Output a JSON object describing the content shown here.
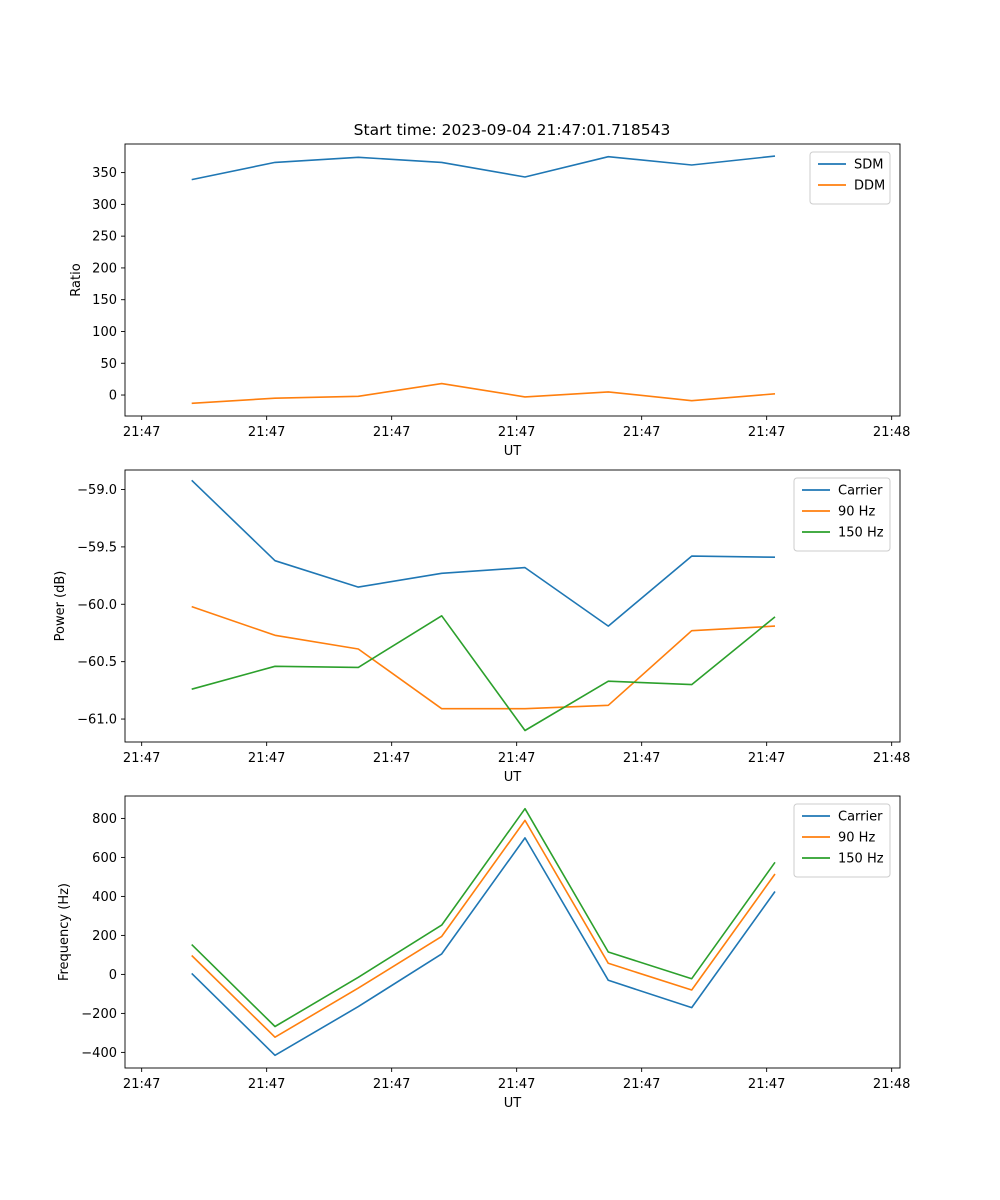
{
  "figure_title": "Start time: 2023-09-04 21:47:01.718543",
  "chart_data": [
    {
      "type": "line",
      "title": "Start time: 2023-09-04 21:47:01.718543",
      "xlabel": "UT",
      "ylabel": "Ratio",
      "x": [
        1,
        2,
        3,
        4,
        5,
        6,
        7,
        8
      ],
      "xlim": [
        0.2,
        9.5
      ],
      "x_ticks": [
        0.4,
        1.9,
        3.4,
        4.9,
        6.4,
        7.9,
        9.4
      ],
      "x_tick_labels": [
        "21:47",
        "21:47",
        "21:47",
        "21:47",
        "21:47",
        "21:47",
        "21:48"
      ],
      "ylim": [
        -33,
        395
      ],
      "y_ticks": [
        0,
        50,
        100,
        150,
        200,
        250,
        300,
        350
      ],
      "y_tick_labels": [
        "0",
        "50",
        "100",
        "150",
        "200",
        "250",
        "300",
        "350"
      ],
      "legend_position": "top-right",
      "series": [
        {
          "name": "SDM",
          "color": "#1f77b4",
          "values": [
            339,
            366,
            374,
            366,
            343,
            375,
            362,
            376
          ]
        },
        {
          "name": "DDM",
          "color": "#ff7f0e",
          "values": [
            -13,
            -5,
            -2,
            18,
            -3,
            5,
            -9,
            2
          ]
        }
      ]
    },
    {
      "type": "line",
      "title": "",
      "xlabel": "UT",
      "ylabel": "Power (dB)",
      "x": [
        1,
        2,
        3,
        4,
        5,
        6,
        7,
        8
      ],
      "xlim": [
        0.2,
        9.5
      ],
      "x_ticks": [
        0.4,
        1.9,
        3.4,
        4.9,
        6.4,
        7.9,
        9.4
      ],
      "x_tick_labels": [
        "21:47",
        "21:47",
        "21:47",
        "21:47",
        "21:47",
        "21:47",
        "21:48"
      ],
      "ylim": [
        -61.2,
        -58.83
      ],
      "y_ticks": [
        -61.0,
        -60.5,
        -60.0,
        -59.5,
        -59.0
      ],
      "y_tick_labels": [
        "−61.0",
        "−60.5",
        "−60.0",
        "−59.5",
        "−59.0"
      ],
      "legend_position": "top-right",
      "series": [
        {
          "name": "Carrier",
          "color": "#1f77b4",
          "values": [
            -58.92,
            -59.62,
            -59.85,
            -59.73,
            -59.68,
            -60.19,
            -59.58,
            -59.59
          ]
        },
        {
          "name": "90 Hz",
          "color": "#ff7f0e",
          "values": [
            -60.02,
            -60.27,
            -60.39,
            -60.91,
            -60.91,
            -60.88,
            -60.23,
            -60.19
          ]
        },
        {
          "name": "150 Hz",
          "color": "#2ca02c",
          "values": [
            -60.74,
            -60.54,
            -60.55,
            -60.1,
            -61.1,
            -60.67,
            -60.7,
            -60.11
          ]
        }
      ]
    },
    {
      "type": "line",
      "title": "",
      "xlabel": "UT",
      "ylabel": "Frequency (Hz)",
      "x": [
        1,
        2,
        3,
        4,
        5,
        6,
        7,
        8
      ],
      "xlim": [
        0.2,
        9.5
      ],
      "x_ticks": [
        0.4,
        1.9,
        3.4,
        4.9,
        6.4,
        7.9,
        9.4
      ],
      "x_tick_labels": [
        "21:47",
        "21:47",
        "21:47",
        "21:47",
        "21:47",
        "21:47",
        "21:48"
      ],
      "ylim": [
        -480,
        915
      ],
      "y_ticks": [
        -400,
        -200,
        0,
        200,
        400,
        600,
        800
      ],
      "y_tick_labels": [
        "−400",
        "−200",
        "0",
        "200",
        "400",
        "600",
        "800"
      ],
      "legend_position": "top-right",
      "series": [
        {
          "name": "Carrier",
          "color": "#1f77b4",
          "values": [
            5,
            -415,
            -165,
            105,
            700,
            -30,
            -170,
            425
          ]
        },
        {
          "name": "90 Hz",
          "color": "#ff7f0e",
          "values": [
            97,
            -322,
            -70,
            195,
            790,
            57,
            -80,
            515
          ]
        },
        {
          "name": "150 Hz",
          "color": "#2ca02c",
          "values": [
            153,
            -267,
            -15,
            253,
            850,
            115,
            -22,
            575
          ]
        }
      ]
    }
  ]
}
